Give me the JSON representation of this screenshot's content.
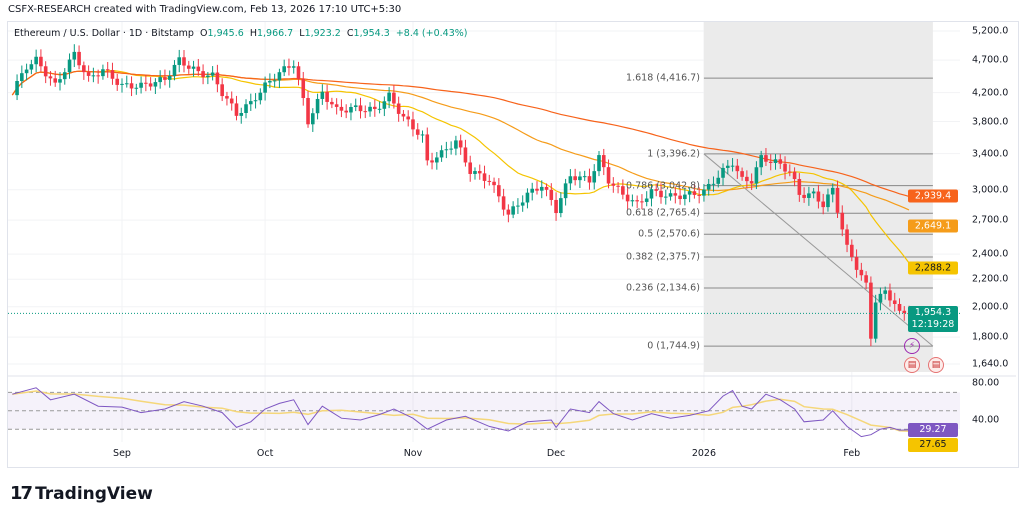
{
  "header": {
    "credit": "CSFX-RESEARCH created with TradingView.com, Feb 13, 2026 17:10 UTC+5:30"
  },
  "legend": {
    "symbol": "Ethereum / U.S. Dollar · 1D · Bitstamp",
    "o_label": "O",
    "o": "1,945.6",
    "h_label": "H",
    "h": "1,966.7",
    "l_label": "L",
    "l": "1,923.2",
    "c_label": "C",
    "c": "1,954.3",
    "change": "+8.4 (+0.43%)"
  },
  "colors": {
    "up": "#089981",
    "down": "#f23645",
    "ma_fast": "#f5c400",
    "ma_mid": "#f59c1a",
    "ma_slow": "#f7631b",
    "rsi": "#7e57c2",
    "rsi_ma": "#f5d77a",
    "fib_region": "#ebebeb"
  },
  "chart_data": {
    "type": "candlestick",
    "scale": "log",
    "ylim": [
      1560,
      5400
    ],
    "y_ticks": [
      "5,200.0",
      "4,700.0",
      "4,200.0",
      "3,800.0",
      "3,400.0",
      "3,000.0",
      "2,700.0",
      "2,400.0",
      "2,200.0",
      "2,000.0",
      "1,800.0",
      "1,640.0"
    ],
    "y_tick_values": [
      5200,
      4700,
      4200,
      3800,
      3400,
      3000,
      2700,
      2400,
      2200,
      2000,
      1800,
      1640
    ],
    "x_ticks": [
      {
        "label": "Sep",
        "date": "2025-09-01"
      },
      {
        "label": "Oct",
        "date": "2025-10-01"
      },
      {
        "label": "Nov",
        "date": "2025-11-01"
      },
      {
        "label": "Dec",
        "date": "2025-12-01"
      },
      {
        "label": "2026",
        "date": "2026-01-01"
      },
      {
        "label": "Feb",
        "date": "2026-02-01"
      }
    ],
    "closes": [
      [
        "2025-08-09",
        4200
      ],
      [
        "2025-08-12",
        4600
      ],
      [
        "2025-08-14",
        4700
      ],
      [
        "2025-08-18",
        4300
      ],
      [
        "2025-08-22",
        4800
      ],
      [
        "2025-08-25",
        4400
      ],
      [
        "2025-08-28",
        4550
      ],
      [
        "2025-09-01",
        4300
      ],
      [
        "2025-09-05",
        4300
      ],
      [
        "2025-09-10",
        4400
      ],
      [
        "2025-09-13",
        4700
      ],
      [
        "2025-09-17",
        4500
      ],
      [
        "2025-09-20",
        4450
      ],
      [
        "2025-09-22",
        4200
      ],
      [
        "2025-09-25",
        3900
      ],
      [
        "2025-09-28",
        4050
      ],
      [
        "2025-10-01",
        4300
      ],
      [
        "2025-10-04",
        4500
      ],
      [
        "2025-10-07",
        4650
      ],
      [
        "2025-10-10",
        3800
      ],
      [
        "2025-10-13",
        4200
      ],
      [
        "2025-10-16",
        3950
      ],
      [
        "2025-10-20",
        3980
      ],
      [
        "2025-10-24",
        3950
      ],
      [
        "2025-10-27",
        4150
      ],
      [
        "2025-10-30",
        3850
      ],
      [
        "2025-11-03",
        3600
      ],
      [
        "2025-11-04",
        3300
      ],
      [
        "2025-11-07",
        3400
      ],
      [
        "2025-11-10",
        3550
      ],
      [
        "2025-11-13",
        3200
      ],
      [
        "2025-11-17",
        3100
      ],
      [
        "2025-11-21",
        2750
      ],
      [
        "2025-11-25",
        2950
      ],
      [
        "2025-11-28",
        3050
      ],
      [
        "2025-12-01",
        2800
      ],
      [
        "2025-12-04",
        3150
      ],
      [
        "2025-12-08",
        3100
      ],
      [
        "2025-12-10",
        3350
      ],
      [
        "2025-12-12",
        3100
      ],
      [
        "2025-12-15",
        2950
      ],
      [
        "2025-12-18",
        2850
      ],
      [
        "2025-12-21",
        2980
      ],
      [
        "2025-12-25",
        2930
      ],
      [
        "2025-12-29",
        2950
      ],
      [
        "2026-01-01",
        2980
      ],
      [
        "2026-01-05",
        3200
      ],
      [
        "2026-01-07",
        3300
      ],
      [
        "2026-01-09",
        3100
      ],
      [
        "2026-01-11",
        3100
      ],
      [
        "2026-01-13",
        3350
      ],
      [
        "2026-01-16",
        3300
      ],
      [
        "2026-01-19",
        3200
      ],
      [
        "2026-01-21",
        2950
      ],
      [
        "2026-01-24",
        2950
      ],
      [
        "2026-01-26",
        2850
      ],
      [
        "2026-01-28",
        3000
      ],
      [
        "2026-01-29",
        2800
      ],
      [
        "2026-01-31",
        2450
      ],
      [
        "2026-02-02",
        2300
      ],
      [
        "2026-02-04",
        2150
      ],
      [
        "2026-02-05",
        1800
      ],
      [
        "2026-02-06",
        2050
      ],
      [
        "2026-02-08",
        2100
      ],
      [
        "2026-02-10",
        2030
      ],
      [
        "2026-02-11",
        1950
      ],
      [
        "2026-02-13",
        1954.3
      ]
    ],
    "last_price": {
      "value": "1,954.3",
      "countdown": "12:19:28"
    },
    "moving_averages": [
      {
        "value": "2,288.2",
        "color": "#f5c400",
        "period": 20
      },
      {
        "value": "2,649.1",
        "color": "#f59c1a",
        "period": 50
      },
      {
        "value": "2,939.4",
        "color": "#f7631b",
        "period": 100
      }
    ],
    "fibonacci": {
      "start": "2026-01-01",
      "end": "2026-02-18",
      "levels": [
        {
          "label": "1.618 (4,416.7)",
          "value": 4416.7
        },
        {
          "label": "1 (3,396.2)",
          "value": 3396.2
        },
        {
          "label": "0.786 (3,042.8)",
          "value": 3042.8
        },
        {
          "label": "0.618 (2,765.4)",
          "value": 2765.4
        },
        {
          "label": "0.5 (2,570.6)",
          "value": 2570.6
        },
        {
          "label": "0.382 (2,375.7)",
          "value": 2375.7
        },
        {
          "label": "0.236 (2,134.6)",
          "value": 2134.6
        },
        {
          "label": "0 (1,744.9)",
          "value": 1744.9
        }
      ]
    },
    "rsi": {
      "ylim": [
        10,
        90
      ],
      "y_ticks": [
        "80.00",
        "40.00"
      ],
      "levels": [
        70,
        50,
        30
      ],
      "value": "29.27",
      "ma_value": "27.65",
      "points": [
        [
          "2025-08-09",
          68
        ],
        [
          "2025-08-14",
          75
        ],
        [
          "2025-08-17",
          62
        ],
        [
          "2025-08-22",
          68
        ],
        [
          "2025-08-27",
          55
        ],
        [
          "2025-09-01",
          54
        ],
        [
          "2025-09-05",
          48
        ],
        [
          "2025-09-10",
          52
        ],
        [
          "2025-09-14",
          60
        ],
        [
          "2025-09-18",
          55
        ],
        [
          "2025-09-22",
          48
        ],
        [
          "2025-09-25",
          32
        ],
        [
          "2025-09-28",
          38
        ],
        [
          "2025-10-01",
          52
        ],
        [
          "2025-10-04",
          58
        ],
        [
          "2025-10-07",
          62
        ],
        [
          "2025-10-10",
          35
        ],
        [
          "2025-10-13",
          55
        ],
        [
          "2025-10-17",
          42
        ],
        [
          "2025-10-21",
          40
        ],
        [
          "2025-10-25",
          46
        ],
        [
          "2025-10-28",
          52
        ],
        [
          "2025-11-01",
          42
        ],
        [
          "2025-11-04",
          30
        ],
        [
          "2025-11-08",
          40
        ],
        [
          "2025-11-12",
          44
        ],
        [
          "2025-11-17",
          33
        ],
        [
          "2025-11-21",
          28
        ],
        [
          "2025-11-25",
          38
        ],
        [
          "2025-11-30",
          40
        ],
        [
          "2025-12-01",
          32
        ],
        [
          "2025-12-04",
          52
        ],
        [
          "2025-12-08",
          48
        ],
        [
          "2025-12-10",
          60
        ],
        [
          "2025-12-13",
          47
        ],
        [
          "2025-12-17",
          40
        ],
        [
          "2025-12-21",
          47
        ],
        [
          "2025-12-25",
          42
        ],
        [
          "2025-12-29",
          45
        ],
        [
          "2026-01-02",
          50
        ],
        [
          "2026-01-05",
          66
        ],
        [
          "2026-01-07",
          72
        ],
        [
          "2026-01-09",
          55
        ],
        [
          "2026-01-11",
          52
        ],
        [
          "2026-01-14",
          68
        ],
        [
          "2026-01-17",
          62
        ],
        [
          "2026-01-20",
          52
        ],
        [
          "2026-01-22",
          38
        ],
        [
          "2026-01-26",
          40
        ],
        [
          "2026-01-28",
          50
        ],
        [
          "2026-01-31",
          33
        ],
        [
          "2026-02-03",
          22
        ],
        [
          "2026-02-05",
          24
        ],
        [
          "2026-02-07",
          30
        ],
        [
          "2026-02-09",
          32
        ],
        [
          "2026-02-11",
          29
        ],
        [
          "2026-02-13",
          29.27
        ]
      ]
    }
  },
  "brand": {
    "name": "TradingView",
    "logo_text": "17"
  }
}
